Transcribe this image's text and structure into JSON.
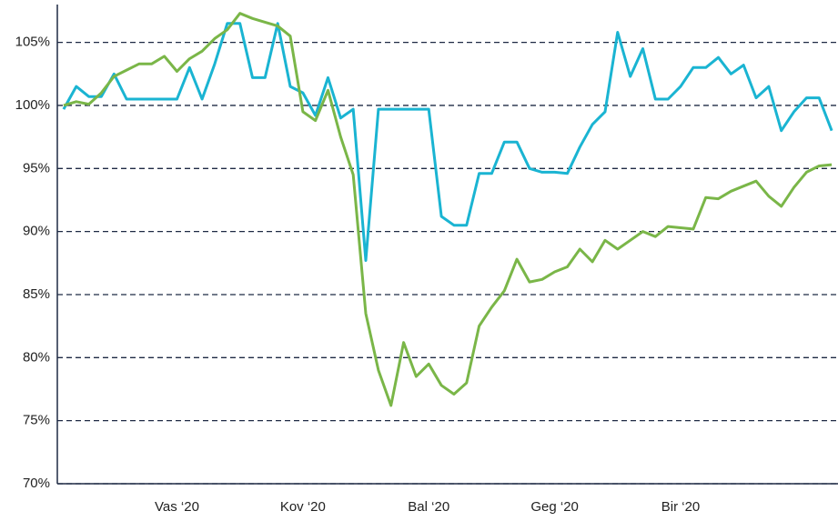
{
  "chart_data": {
    "type": "line",
    "categories": [
      null,
      null,
      null,
      null,
      null,
      null,
      null,
      null,
      null,
      "Vas ‘20",
      null,
      null,
      null,
      null,
      null,
      null,
      null,
      null,
      null,
      "Kov ‘20",
      null,
      null,
      null,
      null,
      null,
      null,
      null,
      null,
      null,
      "Bal ‘20",
      null,
      null,
      null,
      null,
      null,
      null,
      null,
      null,
      null,
      "Geg ‘20",
      null,
      null,
      null,
      null,
      null,
      null,
      null,
      null,
      null,
      "Bir ‘20",
      null,
      null,
      null,
      null,
      null,
      null,
      null,
      null,
      null,
      null,
      null,
      null
    ],
    "series": [
      {
        "color": "#1ab4d2",
        "values": [
          99.7,
          101.5,
          100.7,
          100.7,
          102.5,
          100.5,
          100.5,
          100.5,
          100.5,
          100.5,
          103,
          100.5,
          103.3,
          106.5,
          106.5,
          102.2,
          102.2,
          106.5,
          101.5,
          101,
          99.2,
          102.2,
          99,
          99.7,
          87.7,
          99.7,
          99.7,
          99.7,
          99.7,
          99.7,
          91.2,
          90.5,
          90.5,
          94.6,
          94.6,
          97.1,
          97.1,
          95,
          94.7,
          94.7,
          94.6,
          96.7,
          98.5,
          99.5,
          105.8,
          102.3,
          104.5,
          100.5,
          100.5,
          101.5,
          103,
          103,
          103.8,
          102.5,
          103.2,
          100.6,
          101.5,
          98,
          99.5,
          100.6,
          100.6,
          98
        ]
      },
      {
        "color": "#7ab648",
        "values": [
          100,
          100.3,
          100.1,
          101,
          102.3,
          102.8,
          103.3,
          103.3,
          103.9,
          102.7,
          103.7,
          104.3,
          105.3,
          106,
          107.3,
          106.9,
          106.6,
          106.3,
          105.5,
          99.5,
          98.8,
          101.2,
          97.5,
          94.5,
          83.5,
          79,
          76.2,
          81.2,
          78.5,
          79.5,
          77.8,
          77.1,
          78,
          82.5,
          84,
          85.3,
          87.8,
          86,
          86.2,
          86.8,
          87.2,
          88.6,
          87.6,
          89.3,
          88.6,
          89.3,
          90,
          89.6,
          90.4,
          90.3,
          90.2,
          92.7,
          92.6,
          93.2,
          93.6,
          94,
          92.8,
          92,
          93.5,
          94.7,
          95.2,
          95.3
        ]
      }
    ],
    "ylim": [
      70,
      108
    ],
    "yticks": [
      {
        "value": 70,
        "label": "70%"
      },
      {
        "value": 75,
        "label": "75%"
      },
      {
        "value": 80,
        "label": "80%"
      },
      {
        "value": 85,
        "label": "85%"
      },
      {
        "value": 90,
        "label": "90%"
      },
      {
        "value": 95,
        "label": "95%"
      },
      {
        "value": 100,
        "label": "100%"
      },
      {
        "value": 105,
        "label": "105%"
      }
    ],
    "grid": true
  }
}
